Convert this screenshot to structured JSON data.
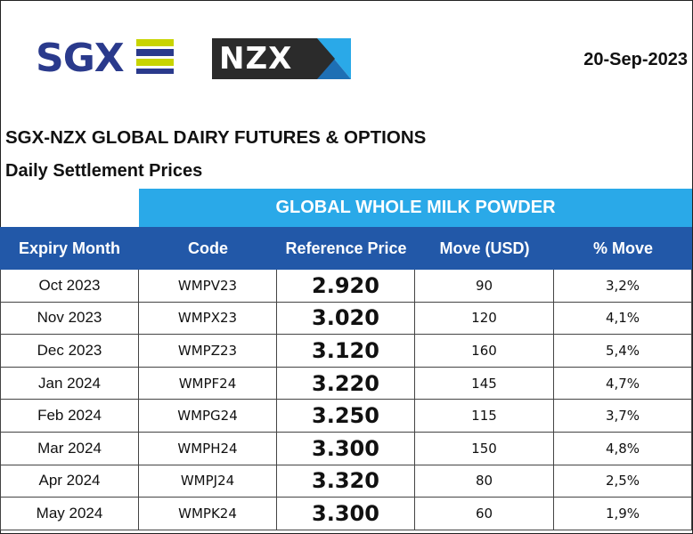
{
  "logos": {
    "sgx_text": "SGX",
    "nzx_text": "NZX",
    "sgx_colors": [
      "#2a3a8c",
      "#c8d400"
    ],
    "nzx_colors": [
      "#2b2b2b",
      "#2aa9e8"
    ]
  },
  "date": "20-Sep-2023",
  "title": "SGX-NZX GLOBAL DAIRY FUTURES & OPTIONS",
  "subtitle": "Daily Settlement Prices",
  "product": "GLOBAL WHOLE MILK POWDER",
  "colors": {
    "band": "#2aa9e8",
    "header": "#2258a8"
  },
  "table": {
    "headers": [
      "Expiry Month",
      "Code",
      "Reference Price",
      "Move (USD)",
      "% Move"
    ],
    "rows": [
      [
        "Oct 2023",
        "WMPV23",
        "2.920",
        "90",
        "3,2%"
      ],
      [
        "Nov 2023",
        "WMPX23",
        "3.020",
        "120",
        "4,1%"
      ],
      [
        "Dec 2023",
        "WMPZ23",
        "3.120",
        "160",
        "5,4%"
      ],
      [
        "Jan 2024",
        "WMPF24",
        "3.220",
        "145",
        "4,7%"
      ],
      [
        "Feb 2024",
        "WMPG24",
        "3.250",
        "115",
        "3,7%"
      ],
      [
        "Mar 2024",
        "WMPH24",
        "3.300",
        "150",
        "4,8%"
      ],
      [
        "Apr 2024",
        "WMPJ24",
        "3.320",
        "80",
        "2,5%"
      ],
      [
        "May 2024",
        "WMPK24",
        "3.300",
        "60",
        "1,9%"
      ]
    ]
  }
}
